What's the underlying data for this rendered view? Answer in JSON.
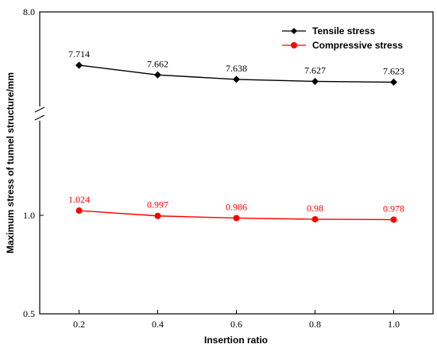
{
  "chart_data": {
    "type": "line",
    "title": "",
    "xlabel": "Insertion ratio",
    "ylabel": "Maximum stress of tunnel structure/mm",
    "x": [
      0.2,
      0.4,
      0.6,
      0.8,
      1.0
    ],
    "x_tick_labels": [
      "0.2",
      "0.4",
      "0.6",
      "0.8",
      "1.0"
    ],
    "y_tick_labels": [
      "0.5",
      "1.0",
      "8.0"
    ],
    "y_axis_break": true,
    "y_segments": [
      {
        "ylim": [
          0.5,
          1.5
        ],
        "ticks": [
          0.5,
          1.0
        ]
      },
      {
        "ylim": [
          7.45,
          8.0
        ],
        "ticks": [
          8.0
        ]
      }
    ],
    "xlim": [
      0.1,
      1.1
    ],
    "grid": false,
    "legend_position": "top-right",
    "series": [
      {
        "name": "Tensile stress",
        "color": "#000000",
        "marker": "diamond",
        "values": [
          7.714,
          7.662,
          7.638,
          7.627,
          7.623
        ],
        "labels": [
          "7.714",
          "7.662",
          "7.638",
          "7.627",
          "7.623"
        ]
      },
      {
        "name": "Compressive stress",
        "color": "#ff0000",
        "marker": "circle",
        "values": [
          1.024,
          0.997,
          0.986,
          0.98,
          0.978
        ],
        "labels": [
          "1.024",
          "0.997",
          "0.986",
          "0.98",
          "0.978"
        ]
      }
    ]
  }
}
